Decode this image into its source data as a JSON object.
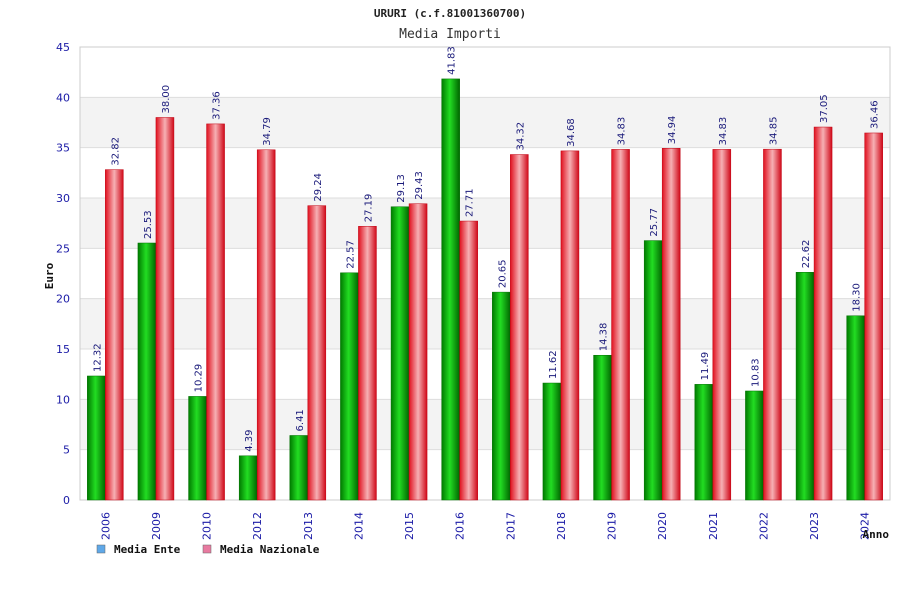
{
  "chart_data": {
    "type": "bar",
    "title": "URURI (c.f.81001360700)",
    "subtitle": "Media Importi",
    "ylabel": "Euro",
    "xlabel": "Anno",
    "ylim": [
      0,
      45
    ],
    "yticks": [
      0,
      5,
      10,
      15,
      20,
      25,
      30,
      35,
      40,
      45
    ],
    "grid": true,
    "legend_position": "bottom-left",
    "categories": [
      "2006",
      "2009",
      "2010",
      "2012",
      "2013",
      "2014",
      "2015",
      "2016",
      "2017",
      "2018",
      "2019",
      "2020",
      "2021",
      "2022",
      "2023",
      "2024"
    ],
    "series": [
      {
        "name": "Media Ente",
        "color": "#00aa00",
        "legend_color": "#5fa8e8",
        "values": [
          12.32,
          25.53,
          10.29,
          4.39,
          6.41,
          22.57,
          29.13,
          41.83,
          20.65,
          11.62,
          14.38,
          25.77,
          11.49,
          10.83,
          22.62,
          18.3
        ],
        "labels": [
          "12.32",
          "25.53",
          "10.29",
          "4.39",
          "6.41",
          "22.57",
          "29.13",
          "41.83",
          "20.65",
          "11.62",
          "14.38",
          "25.77",
          "11.49",
          "10.83",
          "22.62",
          "18.30"
        ]
      },
      {
        "name": "Media Nazionale",
        "color": "#e81e2a",
        "legend_color": "#e87aa0",
        "values": [
          32.82,
          38.0,
          37.36,
          34.79,
          29.24,
          27.19,
          29.43,
          27.71,
          34.32,
          34.68,
          34.83,
          34.94,
          34.83,
          34.85,
          37.05,
          36.46
        ],
        "labels": [
          "32.82",
          "38.00",
          "37.36",
          "34.79",
          "29.24",
          "27.19",
          "29.43",
          "27.71",
          "34.32",
          "34.68",
          "34.83",
          "34.94",
          "34.83",
          "34.85",
          "37.05",
          "36.46"
        ]
      }
    ]
  }
}
